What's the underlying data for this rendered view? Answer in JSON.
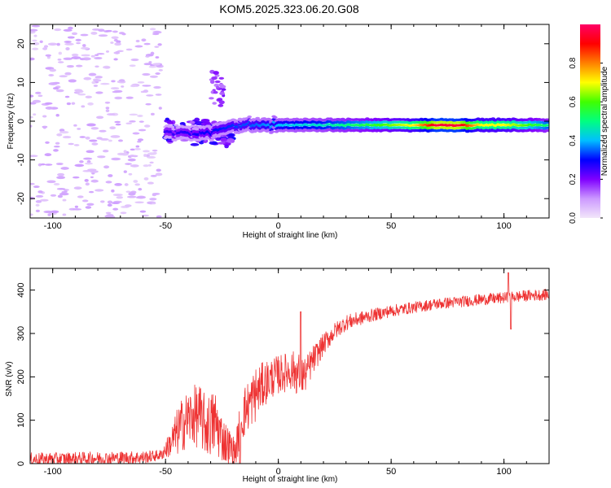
{
  "chart_data": [
    {
      "type": "heatmap",
      "title": "KOM5.2025.323.06.20.G08",
      "xlabel": "Height of straight line (km)",
      "ylabel": "Frequency (Hz)",
      "xlim": [
        -110,
        120
      ],
      "ylim": [
        -25,
        25
      ],
      "xticks": [
        -100,
        -50,
        0,
        50,
        100
      ],
      "yticks": [
        -20,
        -10,
        0,
        10,
        20
      ],
      "colorbar": {
        "label": "Normalized spectral amplitude",
        "range": [
          0,
          1
        ],
        "ticks": [
          "0.0",
          "0.2",
          "0.4",
          "0.6",
          "0.8"
        ],
        "colors": [
          "#f2e6fa",
          "#cc99ff",
          "#7f00ff",
          "#0000ff",
          "#00bfff",
          "#00ff80",
          "#40ff00",
          "#ffff00",
          "#ff8000",
          "#ff0000",
          "#ff0066"
        ]
      },
      "ridge": {
        "center_freq_hz": [
          [
            -48,
            -3
          ],
          [
            -40,
            -3
          ],
          [
            -30,
            -3
          ],
          [
            -20,
            -1
          ],
          [
            -10,
            -1
          ],
          [
            0,
            -1
          ],
          [
            10,
            -1
          ],
          [
            20,
            -1
          ],
          [
            50,
            -1
          ],
          [
            80,
            -1
          ],
          [
            100,
            -1
          ],
          [
            120,
            -1
          ]
        ],
        "amplitude": [
          [
            -50,
            0.25
          ],
          [
            -30,
            0.3
          ],
          [
            -10,
            0.35
          ],
          [
            0,
            0.4
          ],
          [
            20,
            0.45
          ],
          [
            40,
            0.55
          ],
          [
            60,
            0.7
          ],
          [
            70,
            0.95
          ],
          [
            80,
            0.95
          ],
          [
            90,
            0.7
          ],
          [
            100,
            0.7
          ],
          [
            120,
            0.5
          ]
        ]
      },
      "noise_region_x": [
        -110,
        -52
      ]
    },
    {
      "type": "line",
      "title": "",
      "xlabel": "Height of straight line (km)",
      "ylabel": "SNR (v/v)",
      "xlim": [
        -110,
        120
      ],
      "ylim": [
        0,
        450
      ],
      "xticks": [
        -100,
        -50,
        0,
        50,
        100
      ],
      "yticks": [
        0,
        100,
        200,
        300,
        400
      ],
      "series": [
        {
          "name": "SNR",
          "color": "#ee3333",
          "envelope": [
            [
              -110,
              10,
              15
            ],
            [
              -60,
              14,
              15
            ],
            [
              -52,
              20,
              12
            ],
            [
              -48,
              45,
              30
            ],
            [
              -45,
              70,
              55
            ],
            [
              -42,
              95,
              65
            ],
            [
              -38,
              110,
              70
            ],
            [
              -35,
              110,
              75
            ],
            [
              -32,
              85,
              70
            ],
            [
              -28,
              95,
              80
            ],
            [
              -25,
              60,
              55
            ],
            [
              -22,
              40,
              45
            ],
            [
              -19,
              25,
              30
            ],
            [
              -17,
              90,
              60
            ],
            [
              -15,
              120,
              60
            ],
            [
              -12,
              145,
              60
            ],
            [
              -10,
              160,
              65
            ],
            [
              -8,
              175,
              55
            ],
            [
              -5,
              190,
              50
            ],
            [
              -2,
              200,
              45
            ],
            [
              0,
              205,
              45
            ],
            [
              3,
              210,
              45
            ],
            [
              6,
              215,
              45
            ],
            [
              8,
              210,
              50
            ],
            [
              10,
              200,
              55
            ],
            [
              12,
              205,
              40
            ],
            [
              15,
              235,
              35
            ],
            [
              20,
              275,
              25
            ],
            [
              25,
              305,
              20
            ],
            [
              30,
              325,
              18
            ],
            [
              40,
              340,
              15
            ],
            [
              50,
              352,
              14
            ],
            [
              60,
              360,
              13
            ],
            [
              70,
              368,
              13
            ],
            [
              80,
              373,
              13
            ],
            [
              90,
              378,
              13
            ],
            [
              100,
              382,
              13
            ],
            [
              110,
              387,
              13
            ],
            [
              120,
              390,
              13
            ]
          ],
          "spikes": [
            [
              -17,
              0
            ],
            [
              10,
              350
            ],
            [
              102,
              440
            ],
            [
              103,
              310
            ]
          ]
        }
      ]
    }
  ]
}
